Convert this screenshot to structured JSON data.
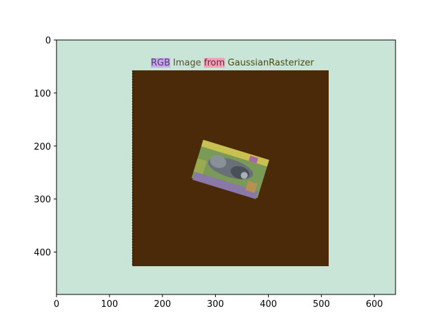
{
  "figure": {
    "title_words": [
      {
        "text": "RGB",
        "color": "#4a3d6a",
        "highlight": "#c8a8e8"
      },
      {
        "text": " Image ",
        "color": "#5a4e2a",
        "highlight": ""
      },
      {
        "text": "from",
        "color": "#6a2a3a",
        "highlight": "#f0a0b8"
      },
      {
        "text": " GaussianRasterizer",
        "color": "#4a4a10",
        "highlight": ""
      }
    ],
    "background_color": "#c9e5d8",
    "image_background_color": "#4a2a08",
    "x_axis": {
      "ticks": [
        "0",
        "100",
        "200",
        "300",
        "400",
        "500",
        "600"
      ],
      "range": [
        0,
        640
      ]
    },
    "y_axis": {
      "ticks": [
        "0",
        "100",
        "200",
        "300",
        "400"
      ],
      "range": [
        0,
        480
      ],
      "inverted": true
    }
  }
}
